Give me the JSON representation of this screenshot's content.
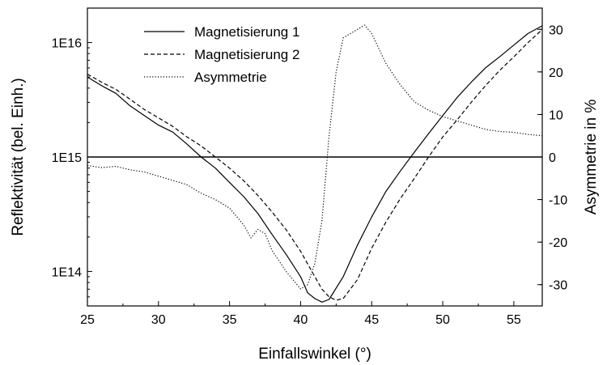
{
  "chart_data": {
    "type": "line",
    "xlabel": "Einfallswinkel (°)",
    "ylabel_left": "Reflektivität (bel. Einh.)",
    "ylabel_right": "Asymmetrie in %",
    "xlim": [
      25,
      57
    ],
    "ylim_left": [
      50000000000000,
      20000000000000000
    ],
    "ylim_right": [
      -35,
      35
    ],
    "y_left_scale": "log",
    "x_ticks": [
      {
        "value": 25,
        "label": "25"
      },
      {
        "value": 30,
        "label": "30"
      },
      {
        "value": 35,
        "label": "35"
      },
      {
        "value": 40,
        "label": "40"
      },
      {
        "value": 45,
        "label": "45"
      },
      {
        "value": 50,
        "label": "50"
      },
      {
        "value": 55,
        "label": "55"
      }
    ],
    "y_left_ticks": [
      {
        "value": 100000000000000,
        "label": "1E14"
      },
      {
        "value": 1000000000000000,
        "label": "1E15"
      },
      {
        "value": 10000000000000000,
        "label": "1E16"
      }
    ],
    "y_right_ticks": [
      {
        "value": -30,
        "label": "-30"
      },
      {
        "value": -20,
        "label": "-20"
      },
      {
        "value": -10,
        "label": "-10"
      },
      {
        "value": 0,
        "label": "0"
      },
      {
        "value": 10,
        "label": "10"
      },
      {
        "value": 20,
        "label": "20"
      },
      {
        "value": 30,
        "label": "30"
      }
    ],
    "reference_line": {
      "axis": "right",
      "value": 0
    },
    "grid": false,
    "legend_position": "top",
    "series": [
      {
        "name": "Magnetisierung 1",
        "axis": "left",
        "style": "solid",
        "x": [
          25,
          26,
          27,
          28,
          29,
          30,
          31,
          32,
          33,
          34,
          35,
          36,
          37,
          38,
          39,
          40,
          40.5,
          41,
          41.5,
          42,
          43,
          44,
          45,
          46,
          47,
          48,
          49,
          50,
          51,
          52,
          53,
          54,
          55,
          56,
          57
        ],
        "y": [
          5000000000000000,
          4200000000000000,
          3600000000000000,
          2800000000000000,
          2300000000000000,
          1900000000000000,
          1650000000000000,
          1300000000000000,
          1000000000000000,
          800000000000000,
          600000000000000,
          450000000000000,
          320000000000000,
          210000000000000,
          140000000000000,
          90000000000000,
          65000000000000,
          58000000000000,
          54000000000000,
          57000000000000,
          90000000000000,
          170000000000000,
          300000000000000,
          500000000000000,
          750000000000000,
          1100000000000000,
          1600000000000000,
          2300000000000000,
          3300000000000000,
          4500000000000000,
          6000000000000000,
          7500000000000000,
          9500000000000000,
          12000000000000000,
          14000000000000000
        ]
      },
      {
        "name": "Magnetisierung 2",
        "axis": "left",
        "style": "dashed",
        "x": [
          25,
          26,
          27,
          28,
          29,
          30,
          31,
          32,
          33,
          34,
          35,
          36,
          37,
          38,
          39,
          40,
          41,
          41.5,
          42,
          42.5,
          43,
          44,
          45,
          46,
          47,
          48,
          49,
          50,
          51,
          52,
          53,
          54,
          55,
          56,
          57
        ],
        "y": [
          5300000000000000,
          4500000000000000,
          3900000000000000,
          3200000000000000,
          2600000000000000,
          2200000000000000,
          1850000000000000,
          1500000000000000,
          1250000000000000,
          1000000000000000,
          800000000000000,
          620000000000000,
          460000000000000,
          330000000000000,
          230000000000000,
          150000000000000,
          90000000000000,
          70000000000000,
          60000000000000,
          56000000000000,
          58000000000000,
          85000000000000,
          160000000000000,
          270000000000000,
          430000000000000,
          650000000000000,
          1000000000000000,
          1500000000000000,
          2100000000000000,
          3000000000000000,
          4200000000000000,
          5700000000000000,
          7500000000000000,
          10000000000000000,
          13000000000000000
        ]
      },
      {
        "name": "Asymmetrie",
        "axis": "right",
        "style": "dotted",
        "x": [
          25,
          26,
          27,
          28,
          29,
          30,
          31,
          32,
          33,
          34,
          35,
          35.5,
          36,
          36.5,
          37,
          37.5,
          38,
          39,
          40,
          40.5,
          41,
          41.5,
          42,
          42.5,
          43,
          44,
          44.5,
          45,
          46,
          47,
          48,
          49,
          50,
          51,
          52,
          53,
          54,
          55,
          56,
          57
        ],
        "y": [
          -2,
          -2.5,
          -2.2,
          -3,
          -3.5,
          -4.5,
          -5.5,
          -6.5,
          -8.5,
          -10,
          -12,
          -14,
          -16,
          -19,
          -17,
          -18,
          -22,
          -27,
          -31,
          -30,
          -25,
          -15,
          5,
          20,
          28,
          30,
          31,
          29,
          22,
          17,
          13,
          11,
          9.5,
          8.5,
          7.5,
          6.5,
          6,
          5.8,
          5.3,
          5
        ]
      }
    ]
  }
}
